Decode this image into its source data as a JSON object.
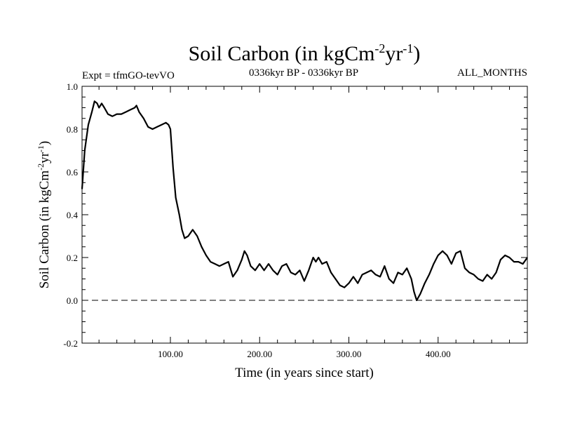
{
  "chart_data": {
    "type": "line",
    "title_main": "Soil Carbon (in kgCm",
    "title_sup1": "-2",
    "title_mid": "yr",
    "title_sup2": "-1",
    "title_end": ")",
    "experiment": "Expt = tfmGO-tevVO",
    "period": "0336kyr BP - 0336kyr BP",
    "months": "ALL_MONTHS",
    "xlabel": "Time (in years since start)",
    "ylabel_main": "Soil Carbon (in kgCm",
    "ylabel_sup1": "-2",
    "ylabel_mid": "yr",
    "ylabel_sup2": "-1",
    "ylabel_end": ")",
    "xlim": [
      1,
      500
    ],
    "ylim": [
      -0.2,
      1.0
    ],
    "x_ticks": [
      100,
      200,
      300,
      400
    ],
    "x_tick_labels": [
      "100.00",
      "200.00",
      "300.00",
      "400.00"
    ],
    "y_ticks": [
      -0.2,
      0.0,
      0.2,
      0.4,
      0.6,
      0.8,
      1.0
    ],
    "y_tick_labels": [
      "-0.2",
      "0.0",
      "0.2",
      "0.4",
      "0.6",
      "0.8",
      "1.0"
    ],
    "reference_line": {
      "y": 0.0,
      "style": "dashed"
    },
    "series": [
      {
        "x": [
          1,
          4,
          8,
          12,
          15,
          18,
          20,
          23,
          26,
          30,
          35,
          40,
          45,
          50,
          55,
          60,
          62,
          65,
          70,
          75,
          80,
          85,
          90,
          95,
          98,
          100,
          103,
          106,
          110,
          113,
          116,
          120,
          125,
          130,
          135,
          140,
          145,
          150,
          155,
          160,
          165,
          170,
          175,
          180,
          183,
          186,
          190,
          195,
          200,
          205,
          210,
          215,
          220,
          225,
          230,
          235,
          240,
          245,
          250,
          255,
          260,
          263,
          266,
          270,
          275,
          280,
          285,
          290,
          295,
          300,
          305,
          310,
          315,
          320,
          325,
          330,
          335,
          340,
          345,
          350,
          355,
          360,
          365,
          370,
          373,
          376,
          380,
          385,
          390,
          395,
          400,
          405,
          410,
          415,
          420,
          425,
          430,
          435,
          440,
          445,
          450,
          455,
          460,
          465,
          470,
          475,
          480,
          485,
          490,
          495,
          500
        ],
        "y": [
          0.52,
          0.7,
          0.82,
          0.88,
          0.93,
          0.92,
          0.9,
          0.92,
          0.9,
          0.87,
          0.86,
          0.87,
          0.87,
          0.88,
          0.89,
          0.9,
          0.91,
          0.88,
          0.85,
          0.81,
          0.8,
          0.81,
          0.82,
          0.83,
          0.82,
          0.8,
          0.62,
          0.48,
          0.4,
          0.33,
          0.29,
          0.3,
          0.33,
          0.3,
          0.25,
          0.21,
          0.18,
          0.17,
          0.16,
          0.17,
          0.18,
          0.11,
          0.14,
          0.19,
          0.23,
          0.21,
          0.16,
          0.14,
          0.17,
          0.14,
          0.17,
          0.14,
          0.12,
          0.16,
          0.17,
          0.13,
          0.12,
          0.14,
          0.09,
          0.14,
          0.2,
          0.18,
          0.2,
          0.17,
          0.18,
          0.13,
          0.1,
          0.07,
          0.06,
          0.08,
          0.11,
          0.08,
          0.12,
          0.13,
          0.14,
          0.12,
          0.11,
          0.16,
          0.1,
          0.08,
          0.13,
          0.12,
          0.15,
          0.1,
          0.04,
          0.0,
          0.03,
          0.08,
          0.12,
          0.17,
          0.21,
          0.23,
          0.21,
          0.17,
          0.22,
          0.23,
          0.15,
          0.13,
          0.12,
          0.1,
          0.09,
          0.12,
          0.1,
          0.13,
          0.19,
          0.21,
          0.2,
          0.18,
          0.18,
          0.17,
          0.2
        ]
      }
    ]
  }
}
